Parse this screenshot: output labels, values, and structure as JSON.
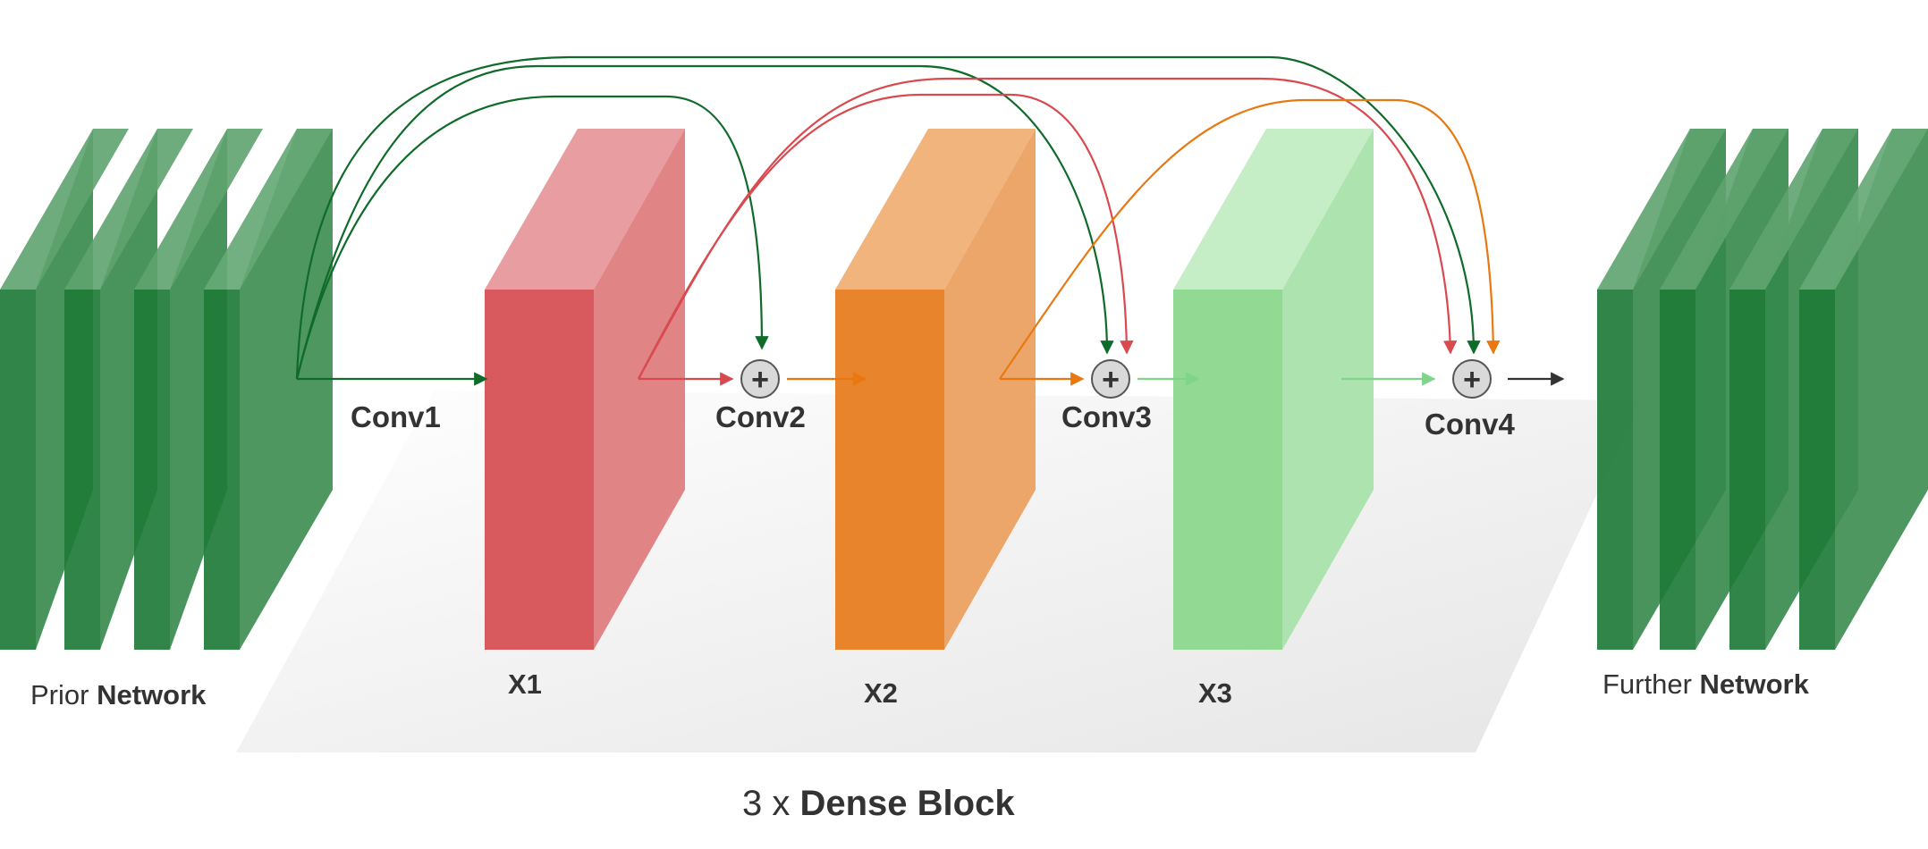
{
  "labels": {
    "prior_prefix": "Prior ",
    "prior_bold": "Network",
    "further_prefix": "Further ",
    "further_bold": "Network",
    "conv1": "Conv1",
    "conv2": "Conv2",
    "conv3": "Conv3",
    "conv4": "Conv4",
    "x1": "X1",
    "x2": "X2",
    "x3": "X3",
    "block_prefix": "3 x ",
    "block_bold": "Dense Block",
    "plus_symbol": "+"
  },
  "colors": {
    "network_green": "#1e7a37",
    "x1_red": "#d9585c",
    "x2_orange": "#e8832a",
    "x3_green": "#8fd98f",
    "arrow_dark_green": "#0f6b2a",
    "arrow_red": "#d94a4f",
    "arrow_orange": "#e8780f",
    "arrow_light_green": "#7fd48a",
    "arrow_black": "#333333",
    "floor_gray": "#ececec",
    "text": "#333333"
  }
}
